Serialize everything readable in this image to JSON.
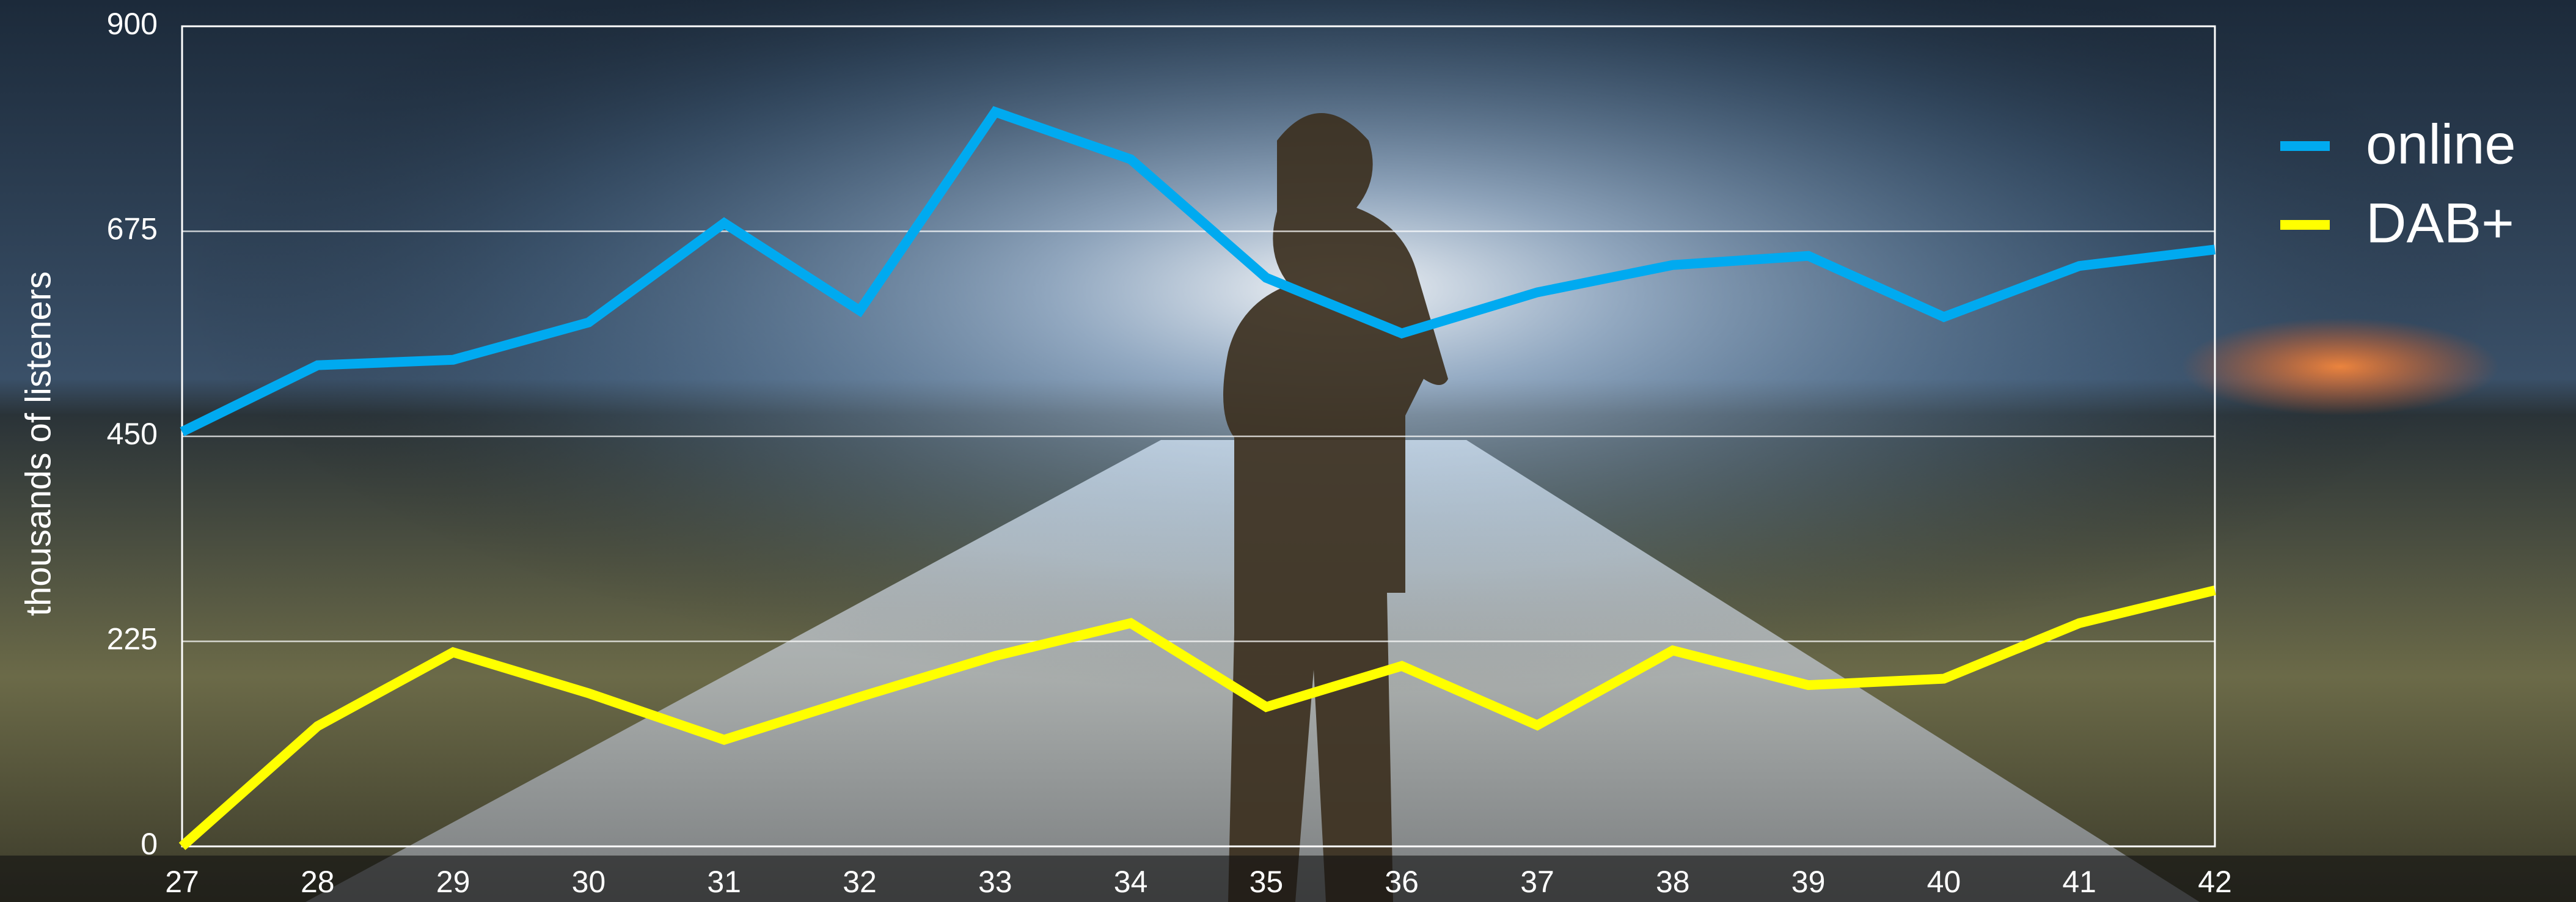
{
  "chart_data": {
    "type": "line",
    "y_label": "thousands of listeners",
    "categories": [
      "27",
      "28",
      "29",
      "30",
      "31",
      "32",
      "33",
      "34",
      "35",
      "36",
      "37",
      "38",
      "39",
      "40",
      "41",
      "42"
    ],
    "series": [
      {
        "name": "online",
        "color": "#00aaf0",
        "values": [
          455,
          528,
          534,
          575,
          684,
          588,
          806,
          754,
          624,
          563,
          608,
          638,
          648,
          581,
          637,
          655
        ]
      },
      {
        "name": "DAB+",
        "color": "#ffff00",
        "values": [
          0,
          132,
          213,
          168,
          117,
          164,
          209,
          245,
          153,
          198,
          133,
          215,
          177,
          184,
          245,
          281
        ]
      }
    ],
    "ylim": [
      0,
      900
    ],
    "yticks": [
      0,
      225,
      450,
      675,
      900
    ],
    "grid": true,
    "legend": "right"
  }
}
